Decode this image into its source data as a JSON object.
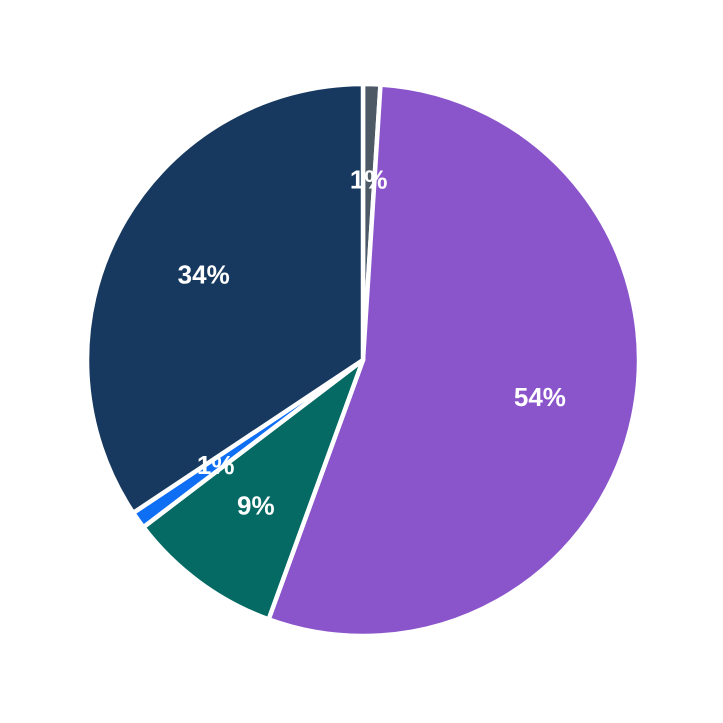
{
  "chart_data": {
    "type": "pie",
    "title": "",
    "legend": "none",
    "background": "#FFFFFF",
    "start_angle": "12-o'clock",
    "direction": "clockwise",
    "label_color": "#FFFFFF",
    "wedge_border_color": "#FFFFFF",
    "segments": [
      {
        "pct_label": "1%",
        "value": 1,
        "color": "#4D5A66",
        "color_name": "slate-gray"
      },
      {
        "pct_label": "54%",
        "value": 54,
        "color": "#8A55CB",
        "color_name": "purple"
      },
      {
        "pct_label": "9%",
        "value": 9,
        "color": "#056A64",
        "color_name": "teal"
      },
      {
        "pct_label": "1%",
        "value": 1,
        "color": "#0E6FF4",
        "color_name": "vivid-blue"
      },
      {
        "pct_label": "34%",
        "value": 34,
        "color": "#17395F",
        "color_name": "navy"
      }
    ]
  }
}
